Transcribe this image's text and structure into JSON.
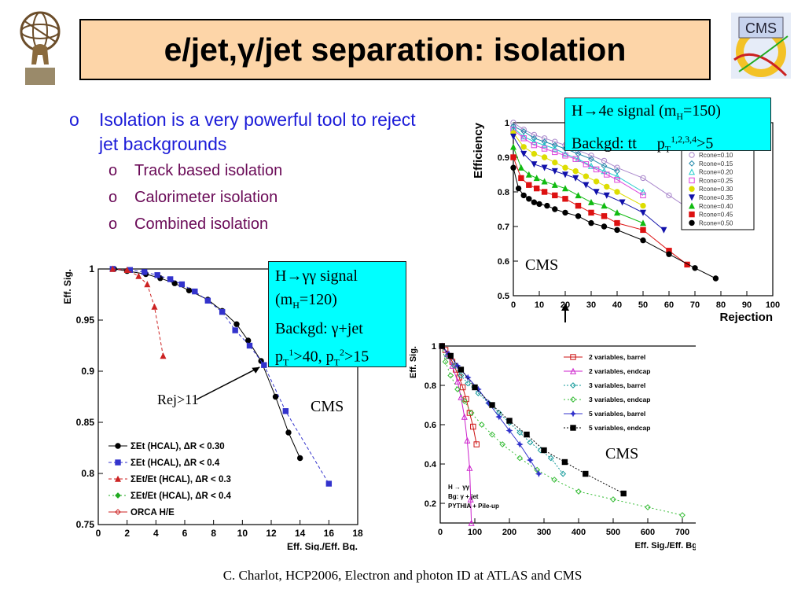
{
  "slide": {
    "title": "e/jet,γ/jet separation: isolation",
    "footer": "C. Charlot, HCP2006, Electron and photon ID at ATLAS and CMS"
  },
  "logos": {
    "left": "atlas-logo",
    "right": "cms-logo",
    "right_text": "CMS"
  },
  "bullets": {
    "main": {
      "marker": "o",
      "text": "Isolation is a very powerful tool to reject jet backgrounds"
    },
    "sub": [
      {
        "marker": "o",
        "text": "Track based isolation"
      },
      {
        "marker": "o",
        "text": "Calorimeter isolation"
      },
      {
        "marker": "o",
        "text": "Combined isolation"
      }
    ]
  },
  "boxes": {
    "electron": {
      "line1": "H→4e signal (m",
      "line1_sub": "H",
      "line1_end": "=150)",
      "line2": "Backgd: tt",
      "line2b": "p",
      "line2_sub": "T",
      "line2_sup": "1,2,3,4",
      "line2_end": ">5"
    },
    "photon": {
      "l1": "H→γγ signal",
      "l2": "(m",
      "l2_sub": "H",
      "l2_end": "=120)",
      "l3": "Backgd: γ+jet",
      "l4a": "p",
      "l4a_sub": "T",
      "l4a_sup": "1",
      "l4b": ">40, p",
      "l4b_sub": "T",
      "l4b_sup": "2",
      "l4c": ">15"
    }
  },
  "labels": {
    "cms1": "CMS",
    "cms2": "CMS",
    "cms3": "CMS",
    "rej": "Rej>11"
  },
  "chart_data": [
    {
      "id": "chart-left",
      "type": "line",
      "xlabel": "Eff. Sig./Eff. Bg.",
      "ylabel": "Eff. Sig.",
      "xlim": [
        0,
        18
      ],
      "ylim": [
        0.75,
        1.0
      ],
      "xticks": [
        0,
        2,
        4,
        6,
        8,
        10,
        12,
        14,
        16,
        18
      ],
      "yticks": [
        0.75,
        0.8,
        0.85,
        0.9,
        0.95,
        1
      ],
      "ytick_labels": [
        "0.75",
        "0.8",
        "0.85",
        "0.9",
        "0.95",
        "1"
      ],
      "series": [
        {
          "name": "ΣEt (HCAL), ΔR < 0.30",
          "color": "#000000",
          "dash": "",
          "marker": "circle",
          "x": [
            1.1,
            2.0,
            3.3,
            4.3,
            5.3,
            6.3,
            7.6,
            8.6,
            9.6,
            10.4,
            11.3,
            12.3,
            13.2,
            14.0
          ],
          "y": [
            1.0,
            0.998,
            0.995,
            0.991,
            0.986,
            0.979,
            0.97,
            0.959,
            0.946,
            0.93,
            0.91,
            0.875,
            0.84,
            0.815
          ]
        },
        {
          "name": "ΣEt (HCAL), ΔR < 0.4",
          "color": "#3333cc",
          "dash": "4,3",
          "marker": "square",
          "x": [
            1.0,
            2.2,
            3.2,
            4.1,
            5.0,
            5.8,
            6.7,
            7.6,
            8.6,
            9.5,
            10.5,
            11.5,
            13.0,
            16.0
          ],
          "y": [
            1.0,
            0.999,
            0.997,
            0.994,
            0.99,
            0.985,
            0.978,
            0.969,
            0.958,
            0.94,
            0.925,
            0.906,
            0.861,
            0.79
          ]
        },
        {
          "name": "ΣEt/Et (HCAL), ΔR < 0.3",
          "color": "#cc2222",
          "dash": "4,3",
          "marker": "triangle",
          "x": [
            1.0,
            2.0,
            2.8,
            3.4,
            3.9,
            4.5
          ],
          "y": [
            1.0,
            0.999,
            0.993,
            0.985,
            0.963,
            0.915
          ]
        },
        {
          "name": "ΣEt/Et (HCAL), ΔR < 0.4",
          "color": "#22aa22",
          "dash": "2,3",
          "marker": "diamond",
          "x": [],
          "y": []
        },
        {
          "name": "ORCA H/E",
          "color": "#cc2222",
          "dash": "",
          "marker": "diamond-open",
          "x": [],
          "y": []
        }
      ],
      "annotation": "Rej>11"
    },
    {
      "id": "chart-top-right",
      "type": "line",
      "xlabel": "Rejection",
      "ylabel": "Efficiency",
      "xlim": [
        0,
        100
      ],
      "ylim": [
        0.5,
        1.0
      ],
      "xticks": [
        0,
        10,
        20,
        30,
        40,
        50,
        60,
        70,
        80,
        90,
        100
      ],
      "yticks": [
        0.5,
        0.6,
        0.7,
        0.8,
        0.9,
        1
      ],
      "ytick_labels": [
        "0.5",
        "0.6",
        "0.7",
        "0.8",
        "0.9",
        "1"
      ],
      "arrow_at_x": 20,
      "series": [
        {
          "name": "Rcone=0.10",
          "color": "#aa88cc",
          "marker": "circle-open",
          "x": [
            0,
            4,
            8,
            12,
            16,
            20,
            25,
            30,
            35,
            40,
            50,
            60,
            70
          ],
          "y": [
            1.0,
            0.98,
            0.965,
            0.955,
            0.945,
            0.935,
            0.92,
            0.905,
            0.89,
            0.87,
            0.84,
            0.79,
            0.74
          ]
        },
        {
          "name": "Rcone=0.15",
          "color": "#2288aa",
          "marker": "diamond-open",
          "x": [
            0,
            4,
            8,
            12,
            16,
            20,
            25,
            30,
            35,
            40
          ],
          "y": [
            0.99,
            0.975,
            0.955,
            0.945,
            0.935,
            0.925,
            0.91,
            0.895,
            0.875,
            0.86
          ]
        },
        {
          "name": "Rcone=0.20",
          "color": "#22cccc",
          "marker": "triangle-open",
          "x": [
            0,
            4,
            8,
            12,
            16,
            20,
            25,
            30,
            35,
            40,
            50
          ],
          "y": [
            0.985,
            0.96,
            0.945,
            0.935,
            0.925,
            0.91,
            0.895,
            0.875,
            0.86,
            0.845,
            0.8
          ]
        },
        {
          "name": "Rcone=0.25",
          "color": "#dd44dd",
          "marker": "square-open",
          "x": [
            0,
            4,
            8,
            12,
            16,
            20,
            24,
            28,
            32,
            36,
            40,
            50
          ],
          "y": [
            0.98,
            0.955,
            0.935,
            0.925,
            0.915,
            0.905,
            0.895,
            0.88,
            0.865,
            0.85,
            0.835,
            0.79
          ]
        },
        {
          "name": "Rcone=0.30",
          "color": "#dddd00",
          "marker": "circle",
          "x": [
            0,
            4,
            8,
            12,
            16,
            20,
            24,
            28,
            32,
            36,
            40,
            50
          ],
          "y": [
            0.97,
            0.93,
            0.91,
            0.9,
            0.885,
            0.87,
            0.86,
            0.845,
            0.83,
            0.815,
            0.8,
            0.76
          ]
        },
        {
          "name": "Rcone=0.35",
          "color": "#1111aa",
          "marker": "triangle-down",
          "x": [
            0,
            4,
            8,
            12,
            16,
            20,
            24,
            28,
            32,
            36,
            42,
            50,
            58
          ],
          "y": [
            0.96,
            0.91,
            0.88,
            0.87,
            0.86,
            0.85,
            0.84,
            0.82,
            0.8,
            0.79,
            0.77,
            0.74,
            0.69
          ]
        },
        {
          "name": "Rcone=0.40",
          "color": "#11bb11",
          "marker": "triangle",
          "x": [
            0,
            3,
            6,
            9,
            12,
            16,
            20,
            25,
            30,
            35,
            40,
            50
          ],
          "y": [
            0.93,
            0.87,
            0.85,
            0.84,
            0.83,
            0.82,
            0.81,
            0.79,
            0.77,
            0.76,
            0.74,
            0.71
          ]
        },
        {
          "name": "Rcone=0.45",
          "color": "#dd1111",
          "marker": "square",
          "x": [
            0,
            3,
            6,
            9,
            12,
            16,
            20,
            25,
            30,
            35,
            40,
            50,
            60,
            67
          ],
          "y": [
            0.9,
            0.84,
            0.82,
            0.81,
            0.8,
            0.79,
            0.78,
            0.76,
            0.74,
            0.73,
            0.71,
            0.69,
            0.63,
            0.59
          ]
        },
        {
          "name": "Rcone=0.50",
          "color": "#000000",
          "marker": "circle",
          "x": [
            0,
            2,
            4,
            6,
            8,
            10,
            13,
            16,
            20,
            25,
            30,
            35,
            40,
            50,
            60,
            70,
            78
          ],
          "y": [
            0.87,
            0.81,
            0.79,
            0.78,
            0.77,
            0.765,
            0.76,
            0.75,
            0.74,
            0.73,
            0.71,
            0.7,
            0.69,
            0.66,
            0.62,
            0.58,
            0.55
          ]
        }
      ]
    },
    {
      "id": "chart-bottom-right",
      "type": "line",
      "xlabel": "Eff. Sig./Eff. Bg.",
      "ylabel": "Eff. Sig.",
      "xlim": [
        0,
        750
      ],
      "ylim": [
        0.1,
        1.0
      ],
      "xticks": [
        0,
        100,
        200,
        300,
        400,
        500,
        600,
        700
      ],
      "yticks": [
        0.2,
        0.4,
        0.6,
        0.8,
        1
      ],
      "ytick_labels": [
        "0.2",
        "0.4",
        "0.6",
        "0.8",
        "1"
      ],
      "corner_notes": [
        "H → γγ",
        "Bg: γ + jet",
        "PYTHIA + Pile-up"
      ],
      "series": [
        {
          "name": "2 variables, barrel",
          "color": "#cc1111",
          "dash": "",
          "marker": "square-open",
          "x": [
            5,
            15,
            25,
            35,
            45,
            55,
            65,
            75,
            85,
            95,
            105
          ],
          "y": [
            1.0,
            0.98,
            0.95,
            0.92,
            0.88,
            0.84,
            0.79,
            0.73,
            0.66,
            0.59,
            0.5
          ]
        },
        {
          "name": "2 variables, endcap",
          "color": "#cc22cc",
          "dash": "",
          "marker": "triangle-open",
          "x": [
            5,
            20,
            35,
            50,
            60,
            70,
            78,
            85,
            88,
            90
          ],
          "y": [
            1.0,
            0.96,
            0.9,
            0.82,
            0.74,
            0.64,
            0.52,
            0.38,
            0.22,
            0.1
          ]
        },
        {
          "name": "3 variables, barrel",
          "color": "#119999",
          "dash": "2,2",
          "marker": "diamond-open",
          "x": [
            5,
            20,
            40,
            60,
            80,
            110,
            140,
            170,
            200,
            230,
            260,
            290,
            320,
            355
          ],
          "y": [
            1.0,
            0.95,
            0.9,
            0.85,
            0.81,
            0.76,
            0.71,
            0.66,
            0.61,
            0.56,
            0.51,
            0.47,
            0.43,
            0.35
          ]
        },
        {
          "name": "3 variables, endcap",
          "color": "#33bb33",
          "dash": "2,3",
          "marker": "diamond-open",
          "x": [
            5,
            15,
            30,
            50,
            70,
            90,
            120,
            150,
            180,
            230,
            280,
            330,
            400,
            500,
            600,
            700
          ],
          "y": [
            1.0,
            0.92,
            0.85,
            0.78,
            0.72,
            0.66,
            0.6,
            0.55,
            0.5,
            0.43,
            0.37,
            0.32,
            0.26,
            0.22,
            0.18,
            0.14
          ]
        },
        {
          "name": "5 variables, barrel",
          "color": "#3333cc",
          "dash": "",
          "marker": "star",
          "x": [
            5,
            25,
            50,
            80,
            110,
            140,
            170,
            200,
            230,
            260,
            285
          ],
          "y": [
            1.0,
            0.96,
            0.9,
            0.84,
            0.78,
            0.71,
            0.64,
            0.57,
            0.5,
            0.42,
            0.35
          ]
        },
        {
          "name": "5 variables, endcap",
          "color": "#000000",
          "dash": "2,2",
          "marker": "square",
          "x": [
            5,
            30,
            60,
            100,
            150,
            200,
            250,
            300,
            360,
            420,
            530
          ],
          "y": [
            1.0,
            0.95,
            0.88,
            0.79,
            0.7,
            0.62,
            0.55,
            0.47,
            0.41,
            0.35,
            0.25
          ]
        }
      ]
    }
  ]
}
